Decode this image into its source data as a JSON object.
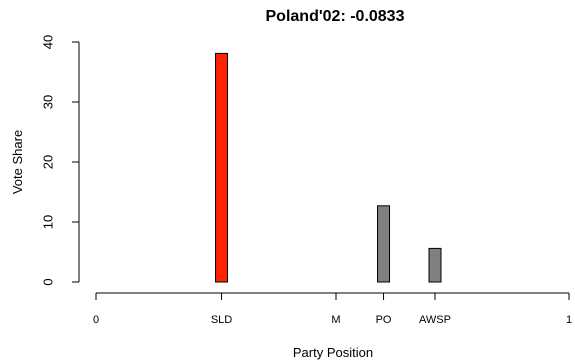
{
  "chart_data": {
    "type": "bar",
    "title": "Poland'02: -0.0833",
    "xlabel": "Party Position",
    "ylabel": "Vote Share",
    "xlim": [
      0,
      1
    ],
    "ylim": [
      0,
      40
    ],
    "y_ticks": [
      0,
      10,
      20,
      30,
      40
    ],
    "x_ticks": [
      {
        "x": 0,
        "label": "0"
      },
      {
        "x": 0.2654,
        "label": "SLD"
      },
      {
        "x": 0.5074,
        "label": "M"
      },
      {
        "x": 0.6079,
        "label": "PO"
      },
      {
        "x": 0.7167,
        "label": "AWSP"
      },
      {
        "x": 1,
        "label": "1"
      }
    ],
    "bars": [
      {
        "party": "SLD",
        "x": 0.2654,
        "value": 38.1,
        "color": "#ff2200"
      },
      {
        "party": "PO",
        "x": 0.6079,
        "value": 12.7,
        "color": "#808080"
      },
      {
        "party": "AWSP",
        "x": 0.7167,
        "value": 5.6,
        "color": "#808080"
      }
    ],
    "grid": false,
    "legend": "none"
  }
}
